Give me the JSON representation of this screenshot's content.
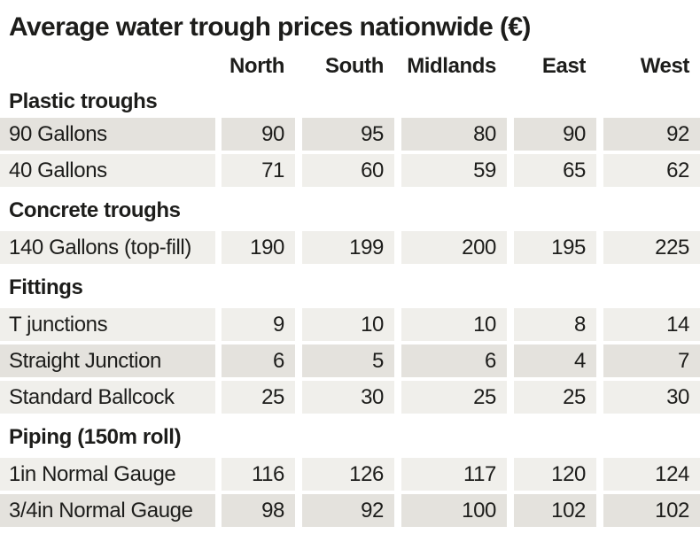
{
  "chart_data": {
    "type": "table",
    "title": "Average water trough prices nationwide (€)",
    "columns": [
      "North",
      "South",
      "Midlands",
      "East",
      "West"
    ],
    "sections": [
      {
        "label": "Plastic troughs",
        "rows": [
          {
            "label": "90 Gallons",
            "values": [
              90,
              95,
              80,
              90,
              92
            ],
            "tone": "dark"
          },
          {
            "label": "40 Gallons",
            "values": [
              71,
              60,
              59,
              65,
              62
            ],
            "tone": "light"
          }
        ]
      },
      {
        "label": "Concrete troughs",
        "rows": [
          {
            "label": "140 Gallons (top-fill)",
            "values": [
              190,
              199,
              200,
              195,
              225
            ],
            "tone": "light"
          }
        ]
      },
      {
        "label": "Fittings",
        "rows": [
          {
            "label": "T junctions",
            "values": [
              9,
              10,
              10,
              8,
              14
            ],
            "tone": "light"
          },
          {
            "label": "Straight Junction",
            "values": [
              6,
              5,
              6,
              4,
              7
            ],
            "tone": "dark"
          },
          {
            "label": "Standard Ballcock",
            "values": [
              25,
              30,
              25,
              25,
              30
            ],
            "tone": "light"
          }
        ]
      },
      {
        "label": "Piping (150m roll)",
        "rows": [
          {
            "label": "1in Normal Gauge",
            "values": [
              116,
              126,
              117,
              120,
              124
            ],
            "tone": "light"
          },
          {
            "label": "3/4in Normal Gauge",
            "values": [
              98,
              92,
              100,
              102,
              102
            ],
            "tone": "dark"
          }
        ]
      }
    ],
    "layout": {
      "legend": "none",
      "grid": "zebra-striped rows with white gutters between columns",
      "value_alignment": "right"
    }
  },
  "colors": {
    "row_dark": "#e4e2dd",
    "row_light": "#f0efeb",
    "text": "#1d1d1b",
    "background": "#ffffff"
  }
}
